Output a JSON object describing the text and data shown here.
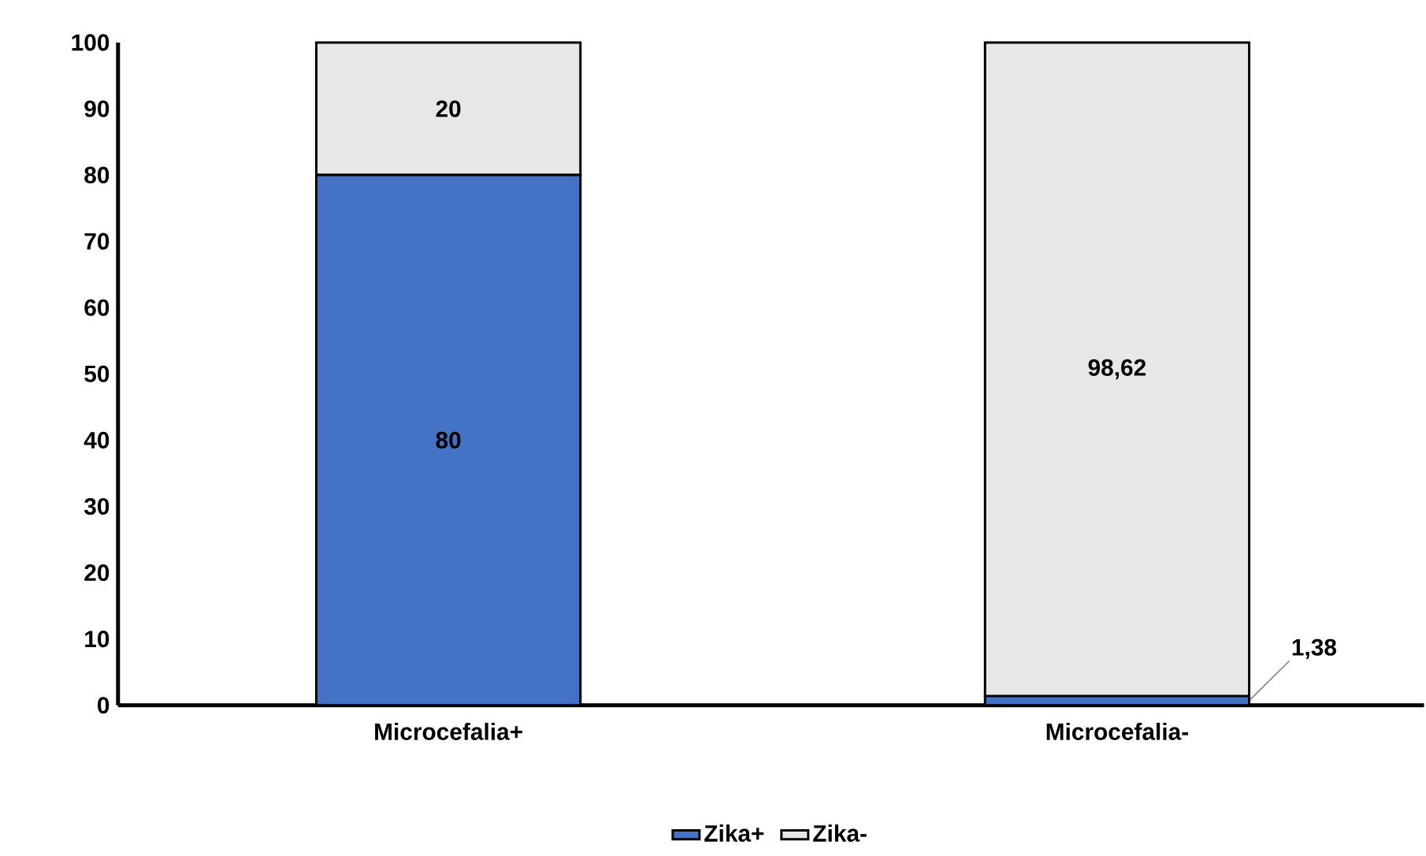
{
  "chart_data": {
    "type": "bar",
    "stacked": true,
    "categories": [
      "Microcefalia+",
      "Microcefalia-"
    ],
    "series": [
      {
        "name": "Zika+",
        "color": "#4472c4",
        "values": [
          80,
          1.38
        ],
        "value_labels": [
          "80",
          "1,38"
        ]
      },
      {
        "name": "Zika-",
        "color": "#e7e7e7",
        "values": [
          20,
          98.62
        ],
        "value_labels": [
          "20",
          "98,62"
        ]
      }
    ],
    "ylim": [
      0,
      100
    ],
    "yticks": [
      0,
      10,
      20,
      30,
      40,
      50,
      60,
      70,
      80,
      90,
      100
    ],
    "grid": false,
    "legend": "bottom"
  }
}
